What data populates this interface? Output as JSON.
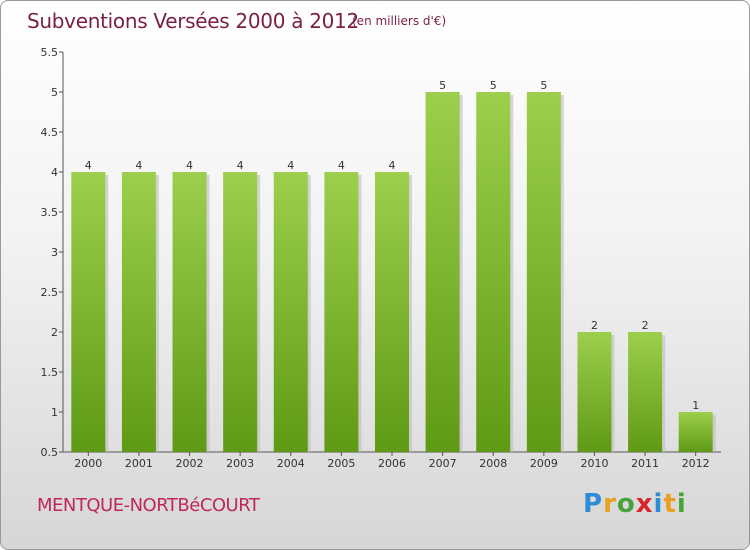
{
  "header": {
    "title": "Subventions Versées 2000 à 2012",
    "subtitle": "(en milliers d'€)"
  },
  "footer": {
    "commune": "MENTQUE-NORTBéCOURT",
    "logo_letters": [
      {
        "ch": "P",
        "color": "#2e8bd6"
      },
      {
        "ch": "r",
        "color": "#e8a020"
      },
      {
        "ch": "o",
        "color": "#49a33b"
      },
      {
        "ch": "x",
        "color": "#d8262c"
      },
      {
        "ch": "i",
        "color": "#2e8bd6"
      },
      {
        "ch": "t",
        "color": "#e8a020"
      },
      {
        "ch": "i",
        "color": "#49a33b"
      }
    ]
  },
  "colors": {
    "bar_light": "#9ccf4c",
    "bar_dark": "#5f9a15",
    "title": "#7a1f45",
    "commune": "#c0285a"
  },
  "chart_data": {
    "type": "bar",
    "title": "Subventions Versées 2000 à 2012",
    "subtitle": "(en milliers d'€)",
    "xlabel": "",
    "ylabel": "",
    "categories": [
      "2000",
      "2001",
      "2002",
      "2003",
      "2004",
      "2005",
      "2006",
      "2007",
      "2008",
      "2009",
      "2010",
      "2011",
      "2012"
    ],
    "values": [
      4,
      4,
      4,
      4,
      4,
      4,
      4,
      5,
      5,
      5,
      2,
      2,
      1
    ],
    "ylim": [
      0.5,
      5.5
    ],
    "yticks": [
      {
        "value": 0.5,
        "label": "0.5"
      },
      {
        "value": 1,
        "label": "1"
      },
      {
        "value": 1.5,
        "label": "1.5"
      },
      {
        "value": 2,
        "label": "2"
      },
      {
        "value": 2.5,
        "label": "2.5"
      },
      {
        "value": 3,
        "label": "3"
      },
      {
        "value": 3.5,
        "label": "3.5"
      },
      {
        "value": 4,
        "label": "4"
      },
      {
        "value": 4.5,
        "label": "4.5"
      },
      {
        "value": 5,
        "label": "5"
      },
      {
        "value": 5.5,
        "label": "5.5"
      }
    ],
    "grid": false,
    "legend": "none"
  }
}
